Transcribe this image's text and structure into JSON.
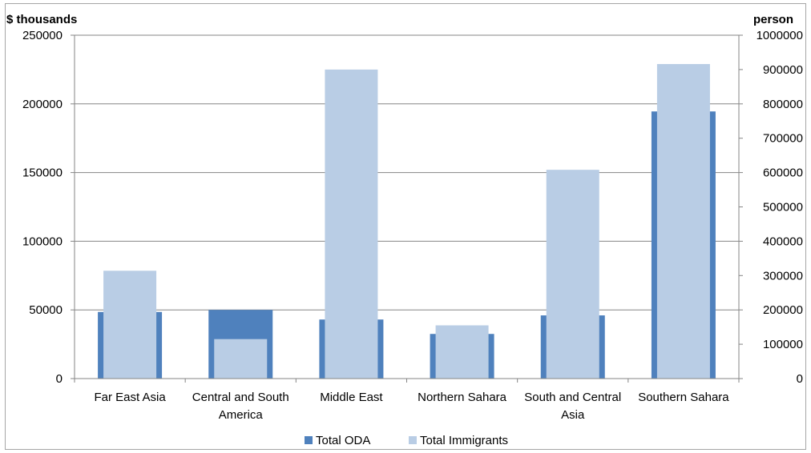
{
  "chart_data": {
    "type": "bar",
    "left_axis_unit": "$ thousands",
    "right_axis_unit": "person",
    "categories": [
      [
        "Far East Asia"
      ],
      [
        "Central and South",
        "America"
      ],
      [
        "Middle East"
      ],
      [
        "Northern Sahara"
      ],
      [
        "South and Central",
        "Asia"
      ],
      [
        "Southern Sahara"
      ]
    ],
    "left_ticks": [
      "0",
      "50000",
      "100000",
      "150000",
      "200000",
      "250000"
    ],
    "right_ticks": [
      "0",
      "100000",
      "200000",
      "300000",
      "400000",
      "500000",
      "600000",
      "700000",
      "800000",
      "900000",
      "1000000"
    ],
    "ylim_left": [
      0,
      250000
    ],
    "ylim_right": [
      0,
      1000000
    ],
    "series": [
      {
        "name": "Total ODA",
        "axis": "left",
        "color": "#4f81bd",
        "values": [
          48500,
          50000,
          43000,
          32500,
          46000,
          194500
        ]
      },
      {
        "name": "Total Immigrants",
        "axis": "right",
        "color": "#b9cde5",
        "values": [
          314000,
          115000,
          900000,
          155000,
          608000,
          916000
        ]
      }
    ],
    "legend_position": "bottom",
    "grid": "horizontal"
  }
}
